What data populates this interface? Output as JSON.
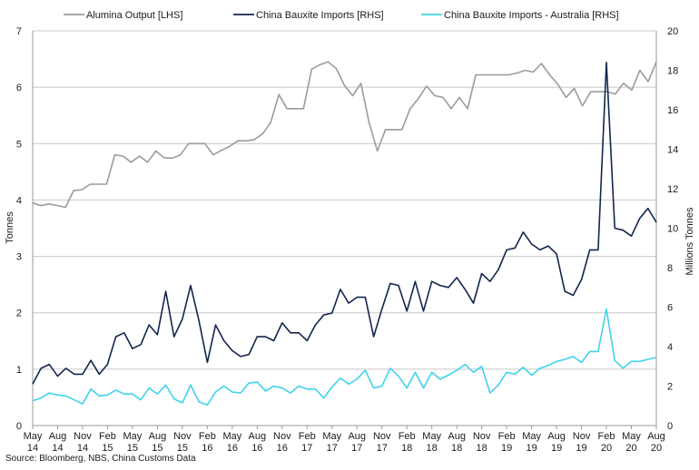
{
  "chart_data": {
    "type": "line",
    "legend_position": "top",
    "grid": true,
    "y_left": {
      "label": "Tonnes",
      "range": [
        0,
        7
      ],
      "ticks": [
        "0",
        "1",
        "2",
        "3",
        "4",
        "5",
        "6",
        "7"
      ]
    },
    "y_right": {
      "label": "Millions Tonnes",
      "range": [
        0,
        20
      ],
      "ticks": [
        "0",
        "2",
        "4",
        "6",
        "8",
        "10",
        "12",
        "14",
        "16",
        "18",
        "20"
      ]
    },
    "x_tick_labels": [
      [
        "May",
        "14"
      ],
      [
        "Aug",
        "14"
      ],
      [
        "Nov",
        "14"
      ],
      [
        "Feb",
        "15"
      ],
      [
        "May",
        "15"
      ],
      [
        "Aug",
        "15"
      ],
      [
        "Nov",
        "15"
      ],
      [
        "Feb",
        "16"
      ],
      [
        "May",
        "16"
      ],
      [
        "Aug",
        "16"
      ],
      [
        "Nov",
        "16"
      ],
      [
        "Feb",
        "17"
      ],
      [
        "May",
        "17"
      ],
      [
        "Aug",
        "17"
      ],
      [
        "Nov",
        "17"
      ],
      [
        "Feb",
        "18"
      ],
      [
        "May",
        "18"
      ],
      [
        "Aug",
        "18"
      ],
      [
        "Nov",
        "18"
      ],
      [
        "Feb",
        "19"
      ],
      [
        "May",
        "19"
      ],
      [
        "Aug",
        "19"
      ],
      [
        "Nov",
        "19"
      ],
      [
        "Feb",
        "20"
      ],
      [
        "May",
        "20"
      ],
      [
        "Aug",
        "20"
      ]
    ],
    "series": [
      {
        "name": "Alumina Output [LHS]",
        "axis": "left",
        "color": "#9b9b9b",
        "values": [
          3.95,
          3.9,
          3.93,
          3.9,
          3.87,
          4.17,
          4.18,
          4.28,
          4.28,
          4.28,
          4.8,
          4.78,
          4.67,
          4.78,
          4.67,
          4.87,
          4.75,
          4.74,
          4.8,
          5.0,
          5.0,
          5.0,
          4.8,
          4.88,
          4.95,
          5.05,
          5.05,
          5.07,
          5.17,
          5.37,
          5.87,
          5.62,
          5.62,
          5.62,
          6.32,
          6.4,
          6.45,
          6.33,
          6.03,
          5.85,
          6.07,
          5.37,
          4.87,
          5.25,
          5.25,
          5.25,
          5.62,
          5.8,
          6.02,
          5.85,
          5.82,
          5.62,
          5.82,
          5.62,
          6.22,
          6.22,
          6.22,
          6.22,
          6.22,
          6.25,
          6.3,
          6.27,
          6.42,
          6.22,
          6.05,
          5.82,
          5.98,
          5.67,
          5.92,
          5.92,
          5.92,
          5.88,
          6.07,
          5.95,
          6.3,
          6.1,
          6.45
        ]
      },
      {
        "name": "China Bauxite Imports [RHS]",
        "axis": "right",
        "color": "#12264d",
        "values": [
          2.1,
          2.9,
          3.1,
          2.5,
          2.9,
          2.6,
          2.6,
          3.3,
          2.6,
          3.1,
          4.5,
          4.7,
          3.9,
          4.1,
          5.1,
          4.6,
          6.8,
          4.5,
          5.4,
          7.1,
          5.3,
          3.2,
          5.1,
          4.3,
          3.8,
          3.5,
          3.6,
          4.5,
          4.5,
          4.3,
          5.2,
          4.7,
          4.7,
          4.3,
          5.1,
          5.6,
          5.7,
          6.9,
          6.2,
          6.5,
          6.5,
          4.5,
          5.9,
          7.2,
          7.1,
          5.8,
          7.3,
          5.8,
          7.3,
          7.1,
          7.0,
          7.5,
          6.9,
          6.2,
          7.7,
          7.3,
          7.9,
          8.9,
          9.0,
          9.8,
          9.2,
          8.9,
          9.1,
          8.7,
          6.8,
          6.6,
          7.4,
          8.9,
          8.9,
          18.4,
          10.0,
          9.9,
          9.6,
          10.5,
          11.0,
          10.3
        ]
      },
      {
        "name": "China Bauxite Imports - Australia [RHS]",
        "axis": "right",
        "color": "#41d2ec",
        "values": [
          1.25,
          1.4,
          1.65,
          1.55,
          1.5,
          1.3,
          1.1,
          1.85,
          1.5,
          1.55,
          1.8,
          1.6,
          1.6,
          1.3,
          1.9,
          1.6,
          2.05,
          1.35,
          1.15,
          2.05,
          1.2,
          1.05,
          1.7,
          2.0,
          1.7,
          1.65,
          2.15,
          2.2,
          1.75,
          2.0,
          1.9,
          1.65,
          2.0,
          1.85,
          1.85,
          1.4,
          1.95,
          2.4,
          2.1,
          2.35,
          2.8,
          1.9,
          2.0,
          2.9,
          2.5,
          1.9,
          2.7,
          1.9,
          2.7,
          2.35,
          2.55,
          2.8,
          3.1,
          2.7,
          3.0,
          1.65,
          2.05,
          2.7,
          2.6,
          2.95,
          2.55,
          2.9,
          3.05,
          3.25,
          3.35,
          3.5,
          3.2,
          3.75,
          3.75,
          5.9,
          3.3,
          2.9,
          3.25,
          3.25,
          3.35,
          3.45
        ]
      }
    ]
  },
  "source": "Source: Bloomberg, NBS, China Customs Data"
}
